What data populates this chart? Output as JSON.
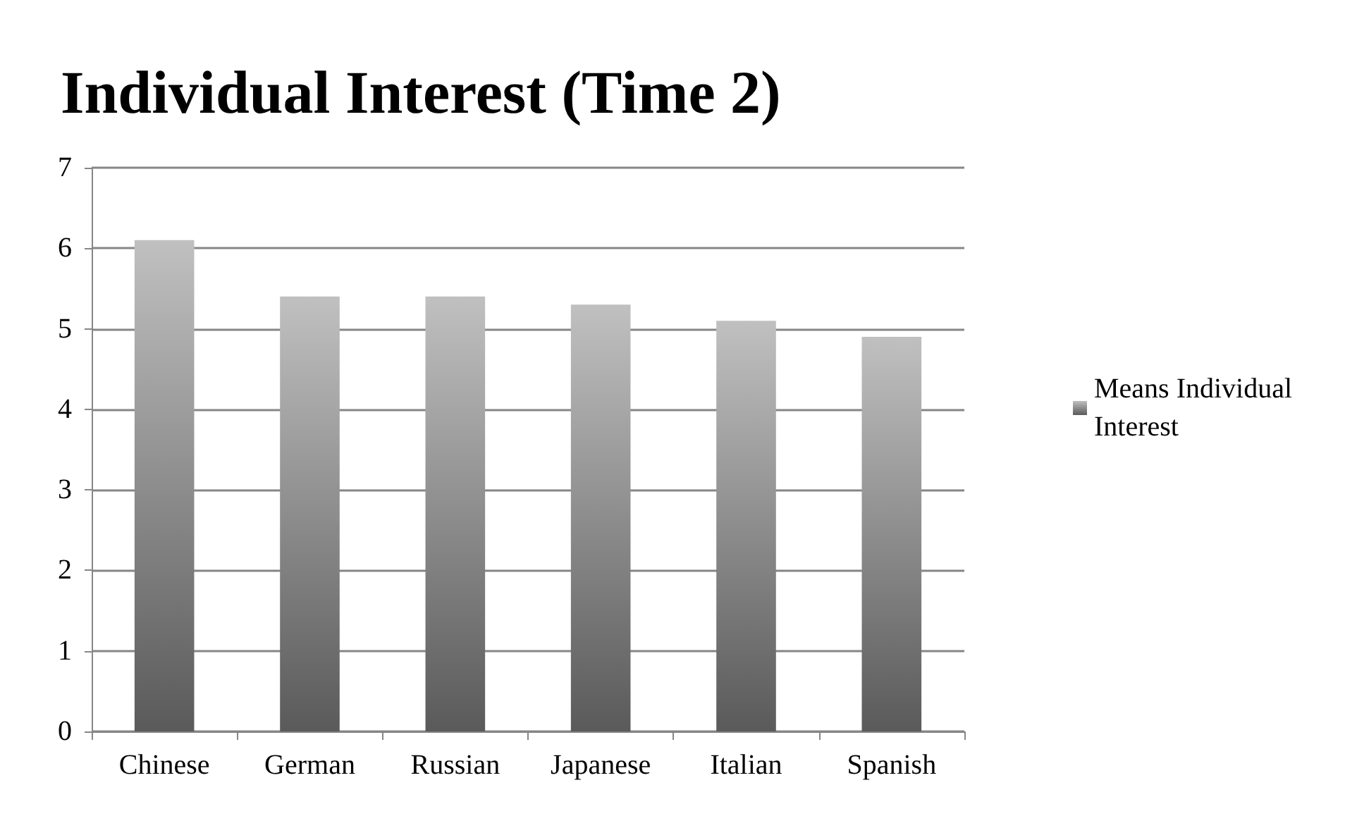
{
  "chart_data": {
    "type": "bar",
    "title": "Individual Interest (Time 2)",
    "categories": [
      "Chinese",
      "German",
      "Russian",
      "Japanese",
      "Italian",
      "Spanish"
    ],
    "series": [
      {
        "name": "Means Individual\nInterest",
        "color": "#c0c0c0",
        "values": [
          6.1,
          5.4,
          5.4,
          5.3,
          5.1,
          4.9
        ]
      }
    ],
    "ylim": [
      0,
      7
    ],
    "yticks": [
      0,
      1,
      2,
      3,
      4,
      5,
      6,
      7
    ],
    "grid": "y",
    "legend": "right"
  }
}
